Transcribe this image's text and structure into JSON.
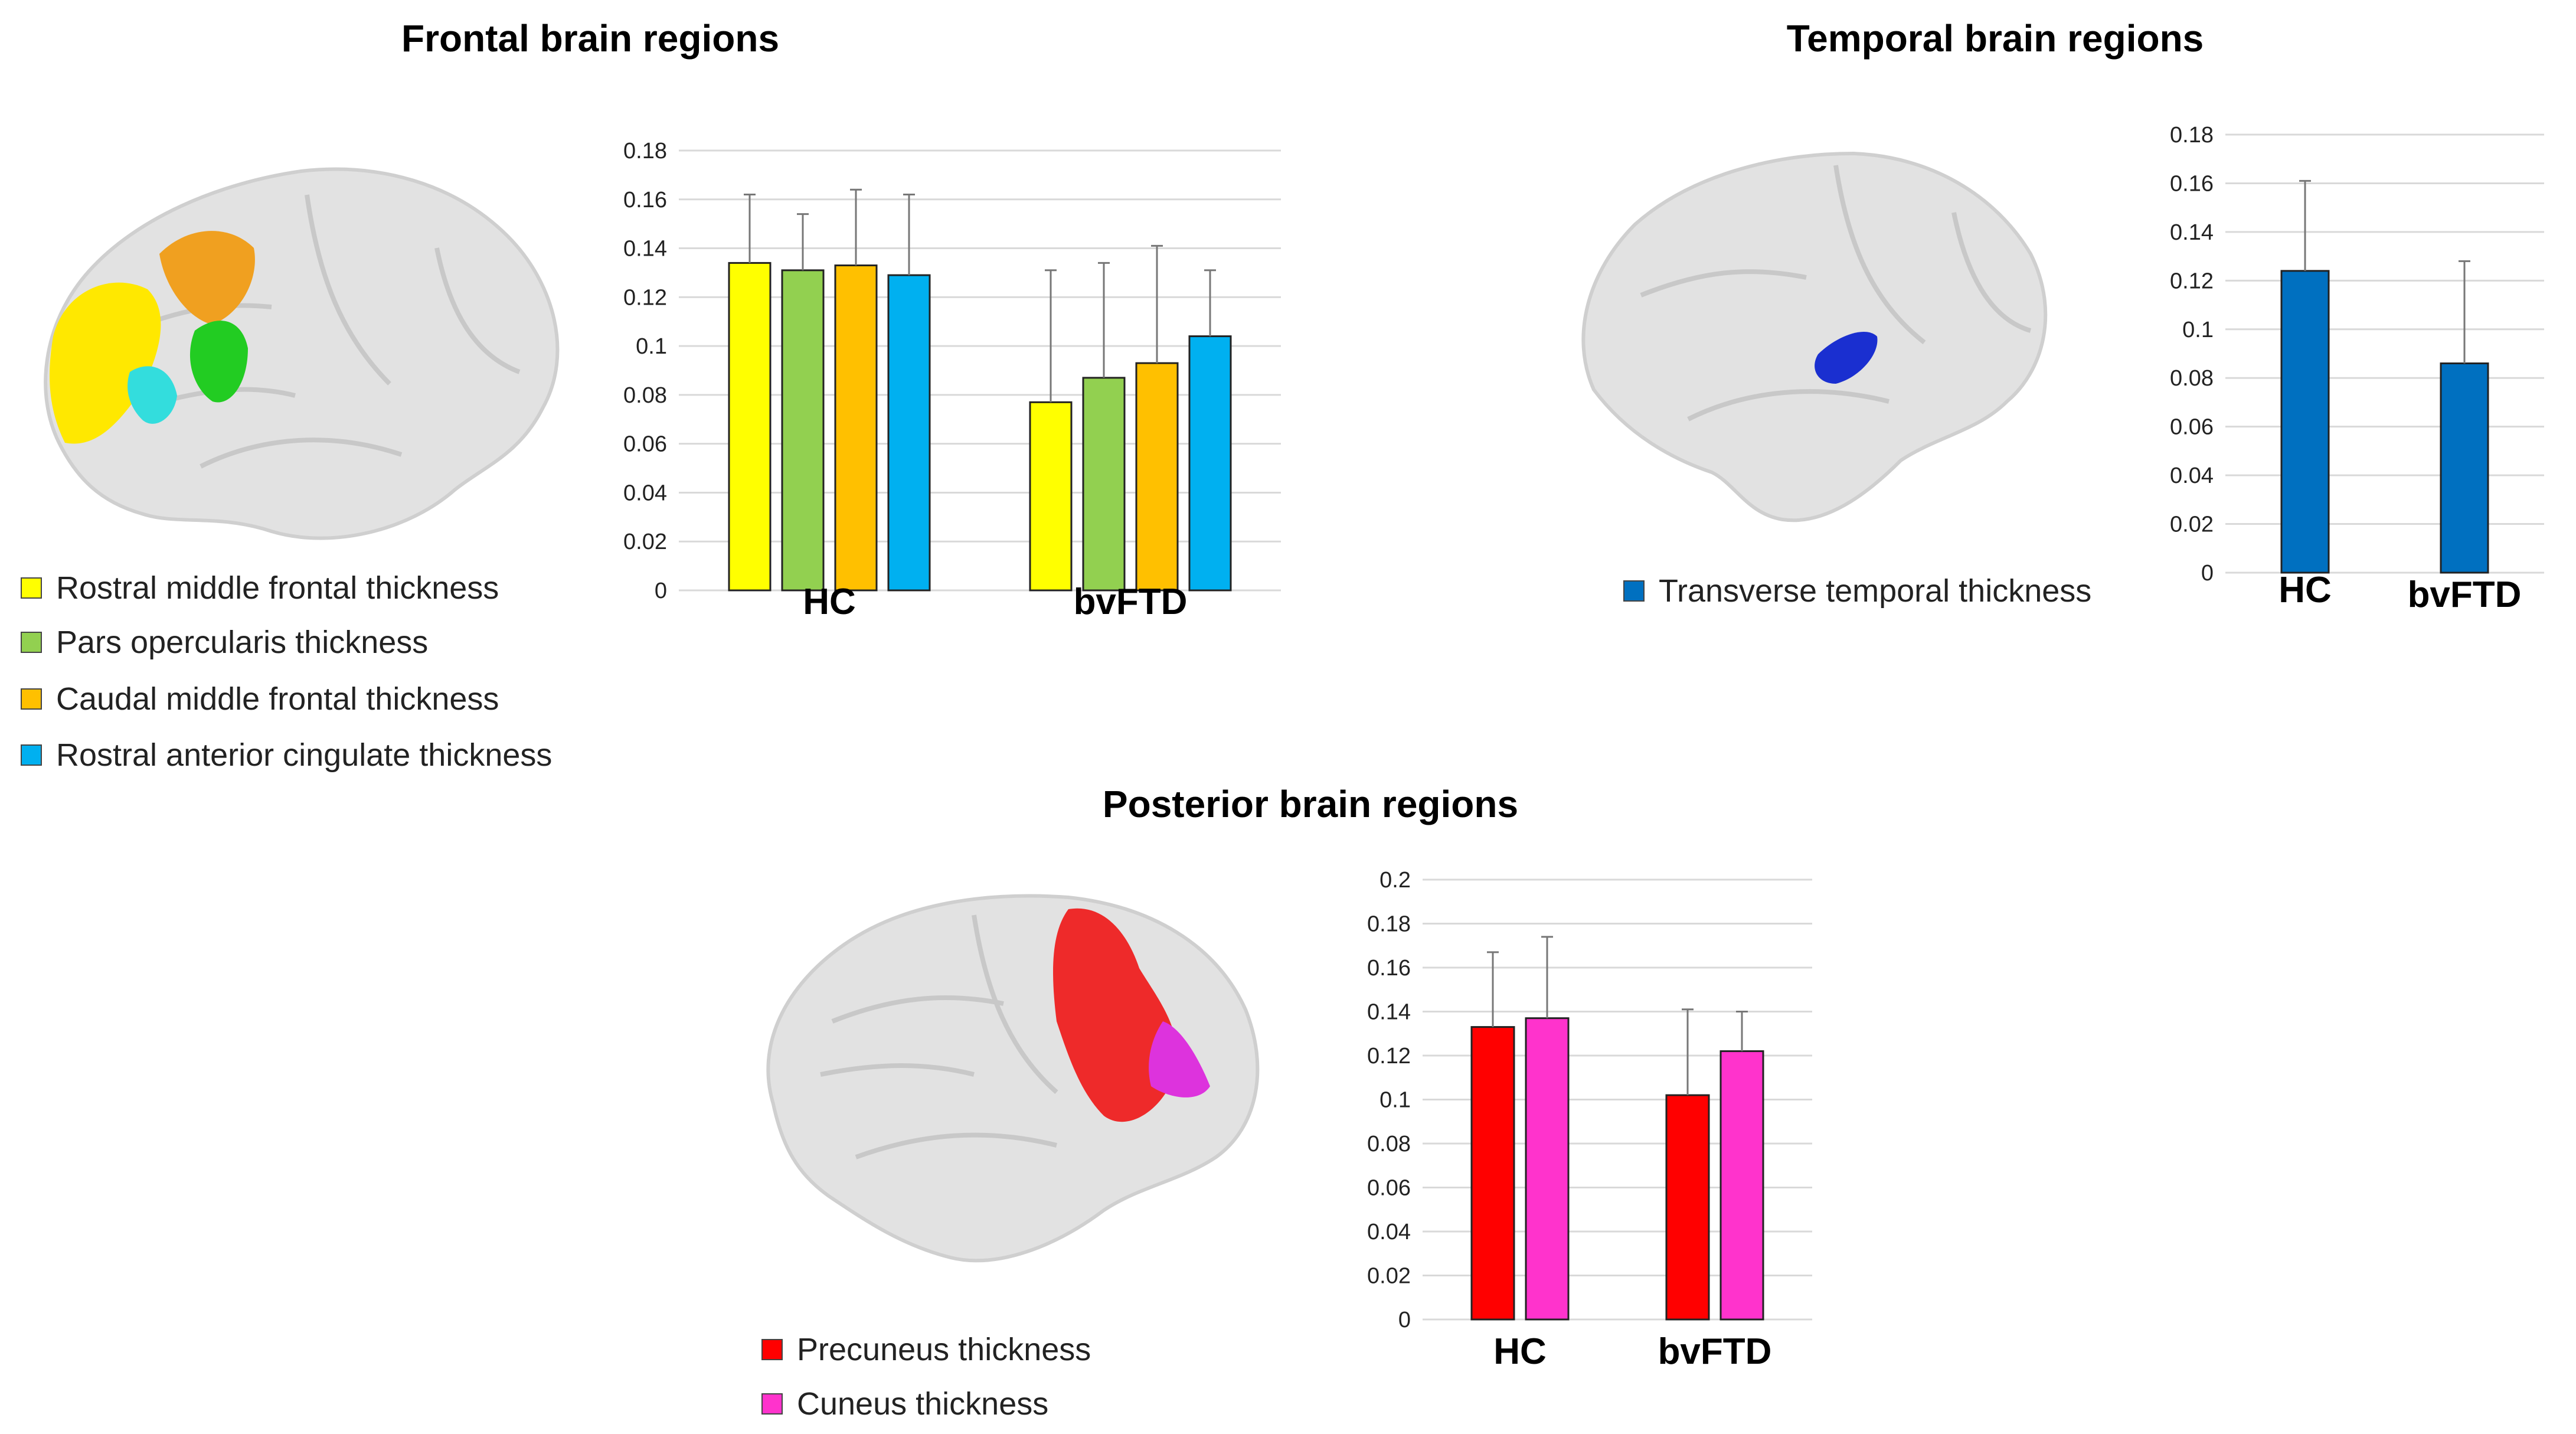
{
  "panels": {
    "frontal": {
      "title": "Frontal brain regions",
      "legend": [
        {
          "label": "Rostral middle frontal thickness",
          "color": "#ffff00"
        },
        {
          "label": "Pars opercularis thickness",
          "color": "#92d050"
        },
        {
          "label": "Caudal middle frontal thickness",
          "color": "#ffc000"
        },
        {
          "label": "Rostral anterior cingulate thickness",
          "color": "#00b0f0"
        }
      ]
    },
    "temporal": {
      "title": "Temporal brain regions",
      "legend": [
        {
          "label": "Transverse temporal thickness",
          "color": "#0070c0"
        }
      ]
    },
    "posterior": {
      "title": "Posterior brain regions",
      "legend": [
        {
          "label": "Precuneus thickness",
          "color": "#ff0000"
        },
        {
          "label": "Cuneus thickness",
          "color": "#ff33cc"
        }
      ]
    }
  },
  "chart_data": [
    {
      "id": "frontal",
      "type": "bar",
      "title": "Frontal brain regions",
      "categories": [
        "HC",
        "bvFTD"
      ],
      "ylim": [
        0,
        0.18
      ],
      "yticks": [
        "0",
        "0.02",
        "0.04",
        "0.06",
        "0.08",
        "0.1",
        "0.12",
        "0.14",
        "0.16",
        "0.18"
      ],
      "grid": true,
      "series": [
        {
          "name": "Rostral middle frontal thickness",
          "color": "#ffff00",
          "values": [
            0.134,
            0.077
          ],
          "errors": [
            0.028,
            0.054
          ]
        },
        {
          "name": "Pars opercularis thickness",
          "color": "#92d050",
          "values": [
            0.131,
            0.087
          ],
          "errors": [
            0.023,
            0.047
          ]
        },
        {
          "name": "Caudal middle frontal thickness",
          "color": "#ffc000",
          "values": [
            0.133,
            0.093
          ],
          "errors": [
            0.031,
            0.048
          ]
        },
        {
          "name": "Rostral anterior cingulate thickness",
          "color": "#00b0f0",
          "values": [
            0.129,
            0.104
          ],
          "errors": [
            0.033,
            0.027
          ]
        }
      ]
    },
    {
      "id": "temporal",
      "type": "bar",
      "title": "Temporal brain regions",
      "categories": [
        "HC",
        "bvFTD"
      ],
      "ylim": [
        0,
        0.18
      ],
      "yticks": [
        "0",
        "0.02",
        "0.04",
        "0.06",
        "0.08",
        "0.1",
        "0.12",
        "0.14",
        "0.16",
        "0.18"
      ],
      "grid": true,
      "series": [
        {
          "name": "Transverse temporal thickness",
          "color": "#0070c0",
          "values": [
            0.124,
            0.086
          ],
          "errors": [
            0.037,
            0.042
          ]
        }
      ]
    },
    {
      "id": "posterior",
      "type": "bar",
      "title": "Posterior brain regions",
      "categories": [
        "HC",
        "bvFTD"
      ],
      "ylim": [
        0,
        0.2
      ],
      "yticks": [
        "0",
        "0.02",
        "0.04",
        "0.06",
        "0.08",
        "0.1",
        "0.12",
        "0.14",
        "0.16",
        "0.18",
        "0.2"
      ],
      "grid": true,
      "series": [
        {
          "name": "Precuneus thickness",
          "color": "#ff0000",
          "values": [
            0.133,
            0.102
          ],
          "errors": [
            0.034,
            0.039
          ]
        },
        {
          "name": "Cuneus thickness",
          "color": "#ff33cc",
          "values": [
            0.137,
            0.122
          ],
          "errors": [
            0.037,
            0.018
          ]
        }
      ]
    }
  ]
}
